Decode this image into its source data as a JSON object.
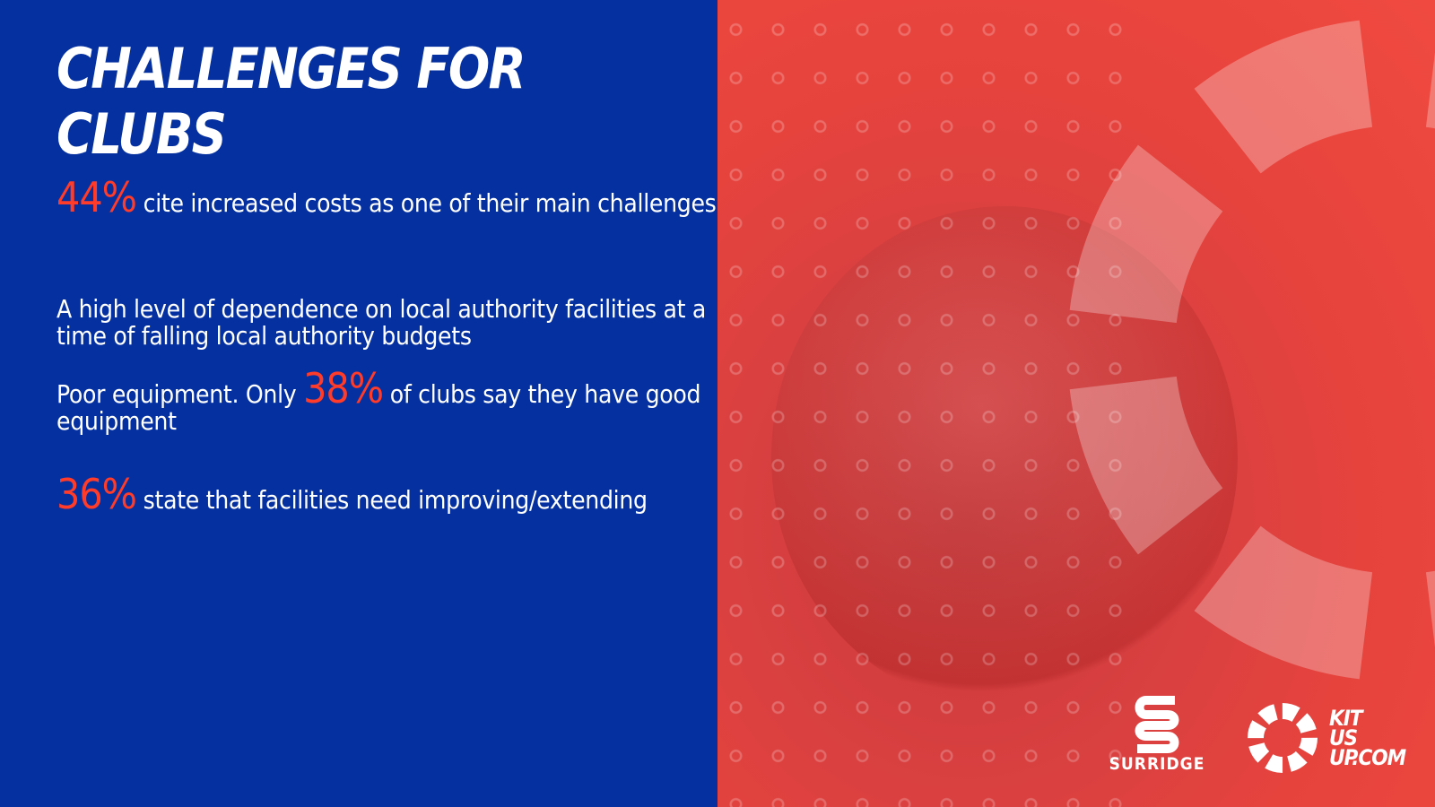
{
  "title": "CHALLENGES FOR CLUBS",
  "items": [
    {
      "highlight": "44%",
      "text_after": " cite increased costs as one of their main challenges"
    },
    {
      "text": "A high level of dependence on local authority facilities at a time of falling local authority budgets"
    },
    {
      "text_before": "Poor equipment. Only ",
      "highlight": "38%",
      "text_after": " of clubs say they have good equipment"
    },
    {
      "highlight": "36%",
      "text_after": " state that facilities need improving/extending"
    }
  ],
  "logos": {
    "surridge": "SURRIDGE",
    "kitusup": [
      "KIT",
      "US",
      "UP.COM"
    ]
  },
  "colors": {
    "blue": "#0530a0",
    "red": "#e6433d",
    "highlight": "#ff3b2a"
  }
}
